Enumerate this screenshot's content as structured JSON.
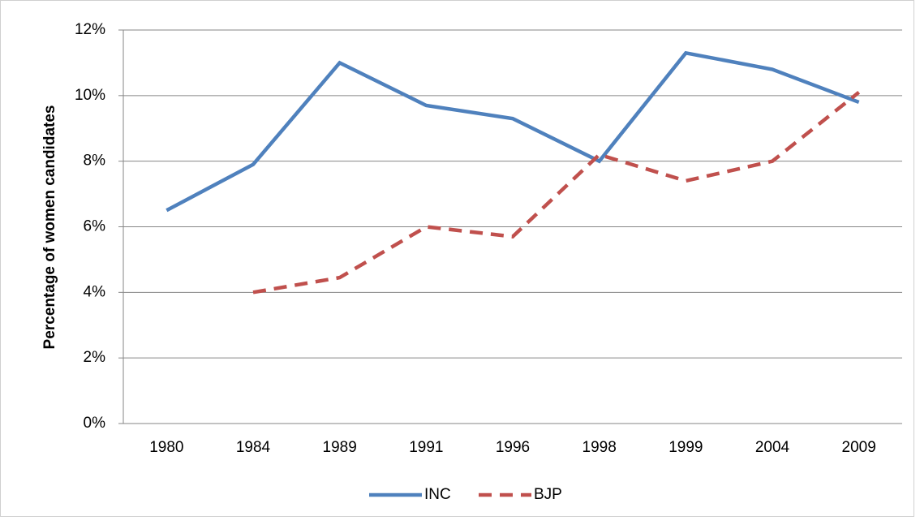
{
  "chart_data": {
    "type": "line",
    "y_label": "Percentage of women candidates",
    "categories": [
      "1980",
      "1984",
      "1989",
      "1991",
      "1996",
      "1998",
      "1999",
      "2004",
      "2009"
    ],
    "series": [
      {
        "name": "INC",
        "color": "#4f81bd",
        "line_style": "solid",
        "values": [
          6.5,
          7.9,
          11.0,
          9.7,
          9.3,
          8.0,
          11.3,
          10.8,
          9.8
        ]
      },
      {
        "name": "BJP",
        "color": "#c0504d",
        "line_style": "dashed",
        "values": [
          null,
          4.0,
          4.45,
          6.0,
          5.7,
          8.2,
          7.4,
          8.0,
          10.1
        ]
      }
    ],
    "ylim": [
      0,
      12
    ],
    "yticks": [
      {
        "value": 0,
        "label": "0%"
      },
      {
        "value": 2,
        "label": "2%"
      },
      {
        "value": 4,
        "label": "4%"
      },
      {
        "value": 6,
        "label": "6%"
      },
      {
        "value": 8,
        "label": "8%"
      },
      {
        "value": 10,
        "label": "10%"
      },
      {
        "value": 12,
        "label": "12%"
      }
    ],
    "grid": true,
    "legend": "bottom"
  }
}
